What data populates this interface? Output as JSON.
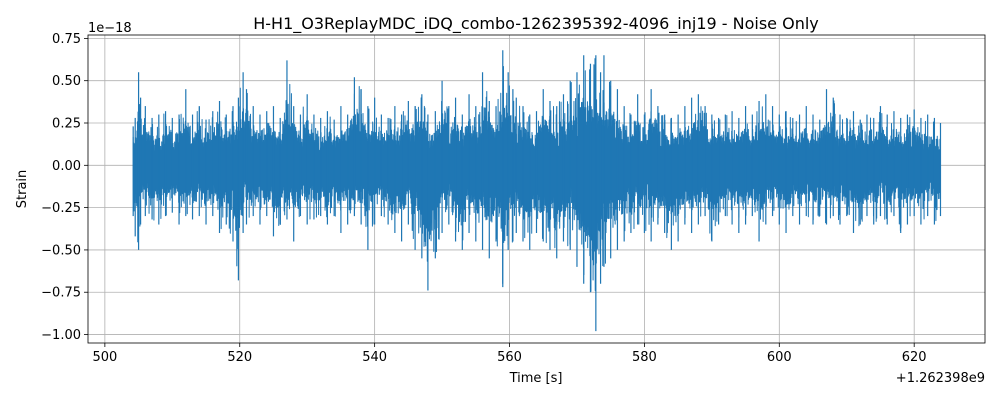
{
  "chart_data": {
    "type": "line",
    "title": "H-H1_O3ReplayMDC_iDQ_combo-1262395392-4096_inj19 - Noise Only",
    "xlabel": "Time [s]",
    "ylabel": "Strain",
    "x_offset_label": "+1.262398e9",
    "y_exponent_label": "1e−18",
    "xlim": [
      497.5,
      630.5
    ],
    "ylim": [
      -1.05,
      0.77
    ],
    "grid": true,
    "line_color": "#1f77b4",
    "x_ticks": [
      500,
      520,
      540,
      560,
      580,
      600,
      620
    ],
    "x_tick_labels": [
      "500",
      "520",
      "540",
      "560",
      "580",
      "600",
      "620"
    ],
    "y_ticks": [
      0.75,
      0.5,
      0.25,
      0.0,
      -0.25,
      -0.5,
      -0.75,
      -1.0
    ],
    "y_tick_labels": [
      "0.75",
      "0.50",
      "0.25",
      "0.00",
      "−0.25",
      "−0.50",
      "−0.75",
      "−1.00"
    ],
    "series": [
      {
        "x": [
          504.2,
          504.5,
          505.0,
          505.3,
          506.0,
          507.0,
          508.0,
          509.0,
          510.0,
          511.0,
          512.0,
          513.0,
          514.0,
          515.0,
          516.0,
          517.0,
          518.0,
          519.0,
          519.8,
          520.5,
          521.0,
          522.0,
          523.0,
          524.0,
          525.0,
          526.0,
          527.0,
          528.0,
          529.0,
          530.0,
          531.0,
          532.0,
          533.0,
          534.0,
          535.0,
          536.0,
          537.0,
          538.0,
          539.0,
          540.0,
          541.0,
          542.0,
          543.0,
          544.0,
          545.0,
          546.0,
          547.0,
          547.9,
          549.0,
          550.0,
          551.0,
          552.0,
          553.0,
          554.0,
          555.0,
          556.0,
          557.0,
          558.0,
          559.0,
          559.8,
          560.5,
          561.0,
          562.0,
          563.0,
          564.0,
          565.0,
          566.0,
          567.0,
          568.0,
          569.0,
          570.0,
          571.0,
          572.0,
          572.8,
          573.5,
          574.0,
          575.0,
          576.0,
          577.0,
          578.0,
          579.0,
          580.0,
          581.0,
          582.0,
          583.0,
          584.0,
          585.0,
          586.0,
          587.0,
          588.0,
          589.0,
          590.0,
          591.0,
          592.0,
          593.0,
          594.0,
          595.0,
          596.0,
          597.0,
          598.0,
          599.0,
          600.0,
          601.0,
          602.0,
          603.0,
          604.0,
          605.0,
          606.0,
          607.0,
          608.0,
          609.0,
          610.0,
          611.0,
          612.0,
          613.0,
          614.0,
          615.0,
          616.0,
          617.0,
          618.0,
          619.0,
          620.0,
          621.0,
          622.0,
          623.0,
          623.9
        ],
        "y_max": [
          0.23,
          0.28,
          0.55,
          0.4,
          0.35,
          0.28,
          0.3,
          0.32,
          0.28,
          0.3,
          0.45,
          0.3,
          0.35,
          0.27,
          0.32,
          0.38,
          0.3,
          0.35,
          0.4,
          0.55,
          0.45,
          0.35,
          0.3,
          0.32,
          0.35,
          0.28,
          0.62,
          0.35,
          0.3,
          0.42,
          0.3,
          0.28,
          0.32,
          0.27,
          0.35,
          0.3,
          0.52,
          0.45,
          0.35,
          0.4,
          0.3,
          0.28,
          0.35,
          0.3,
          0.38,
          0.35,
          0.42,
          0.3,
          0.32,
          0.5,
          0.35,
          0.4,
          0.3,
          0.42,
          0.35,
          0.55,
          0.38,
          0.35,
          0.68,
          0.55,
          0.45,
          0.4,
          0.35,
          0.3,
          0.32,
          0.45,
          0.38,
          0.35,
          0.42,
          0.5,
          0.55,
          0.65,
          0.6,
          0.65,
          0.55,
          0.65,
          0.5,
          0.45,
          0.35,
          0.3,
          0.42,
          0.3,
          0.45,
          0.35,
          0.3,
          0.28,
          0.3,
          0.35,
          0.4,
          0.42,
          0.35,
          0.3,
          0.28,
          0.3,
          0.32,
          0.28,
          0.35,
          0.3,
          0.38,
          0.42,
          0.35,
          0.3,
          0.32,
          0.28,
          0.3,
          0.35,
          0.3,
          0.27,
          0.45,
          0.4,
          0.3,
          0.28,
          0.32,
          0.27,
          0.3,
          0.28,
          0.35,
          0.3,
          0.32,
          0.28,
          0.3,
          0.33,
          0.28,
          0.3,
          0.28,
          0.25
        ],
        "y_min": [
          -0.3,
          -0.42,
          -0.5,
          -0.35,
          -0.3,
          -0.32,
          -0.35,
          -0.3,
          -0.28,
          -0.35,
          -0.3,
          -0.32,
          -0.3,
          -0.35,
          -0.3,
          -0.4,
          -0.35,
          -0.45,
          -0.68,
          -0.4,
          -0.35,
          -0.3,
          -0.35,
          -0.3,
          -0.42,
          -0.35,
          -0.32,
          -0.45,
          -0.3,
          -0.35,
          -0.32,
          -0.3,
          -0.35,
          -0.3,
          -0.4,
          -0.35,
          -0.3,
          -0.35,
          -0.5,
          -0.35,
          -0.3,
          -0.35,
          -0.4,
          -0.45,
          -0.35,
          -0.5,
          -0.55,
          -0.74,
          -0.55,
          -0.4,
          -0.35,
          -0.45,
          -0.5,
          -0.4,
          -0.45,
          -0.5,
          -0.55,
          -0.45,
          -0.72,
          -0.5,
          -0.45,
          -0.4,
          -0.45,
          -0.5,
          -0.4,
          -0.45,
          -0.5,
          -0.55,
          -0.45,
          -0.5,
          -0.6,
          -0.7,
          -0.75,
          -0.98,
          -0.7,
          -0.6,
          -0.55,
          -0.5,
          -0.45,
          -0.4,
          -0.35,
          -0.4,
          -0.45,
          -0.35,
          -0.4,
          -0.5,
          -0.45,
          -0.35,
          -0.4,
          -0.35,
          -0.3,
          -0.45,
          -0.35,
          -0.3,
          -0.35,
          -0.4,
          -0.35,
          -0.3,
          -0.45,
          -0.35,
          -0.3,
          -0.35,
          -0.4,
          -0.3,
          -0.35,
          -0.3,
          -0.35,
          -0.3,
          -0.35,
          -0.3,
          -0.35,
          -0.3,
          -0.4,
          -0.35,
          -0.3,
          -0.35,
          -0.3,
          -0.35,
          -0.3,
          -0.4,
          -0.35,
          -0.3,
          -0.35,
          -0.3,
          -0.35,
          -0.3
        ]
      }
    ]
  }
}
